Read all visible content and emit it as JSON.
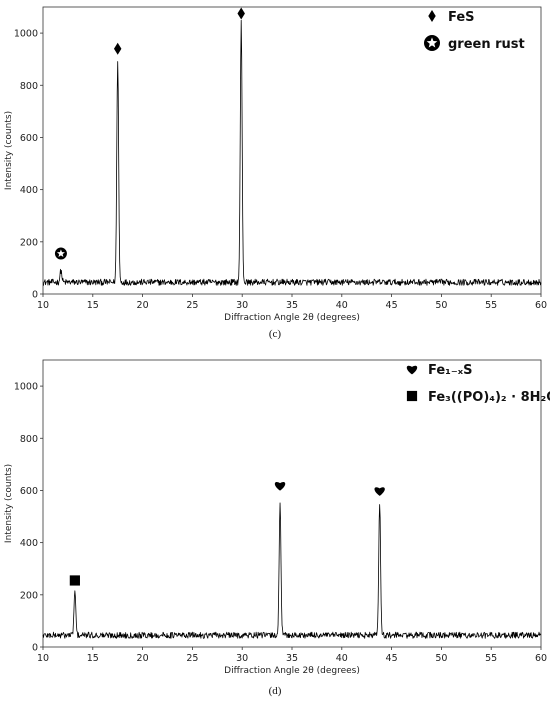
{
  "chart_data": [
    {
      "type": "line",
      "panel_label": "(c)",
      "xlabel": "Diffraction Angle 2θ (degrees)",
      "ylabel": "Intensity (counts)",
      "xlim": [
        10,
        60
      ],
      "ylim": [
        0,
        1100
      ],
      "x_ticks": [
        10,
        15,
        20,
        25,
        30,
        35,
        40,
        45,
        50,
        55,
        60
      ],
      "y_ticks": [
        0,
        200,
        400,
        600,
        800,
        1000
      ],
      "grid": false,
      "baseline": 45,
      "noise_amplitude": 12,
      "series": [
        {
          "peaks": [
            {
              "x": 11.8,
              "y": 90
            },
            {
              "x": 17.5,
              "y": 900
            },
            {
              "x": 29.9,
              "y": 1040
            }
          ]
        }
      ],
      "legend": {
        "position": "top-right",
        "entries": [
          {
            "marker": "diamond",
            "text": "FeS"
          },
          {
            "marker": "star-circle",
            "text": "green rust"
          }
        ]
      },
      "markers": [
        {
          "x": 11.8,
          "y": 155,
          "marker": "star-circle"
        },
        {
          "x": 17.5,
          "y": 940,
          "marker": "diamond"
        },
        {
          "x": 29.9,
          "y": 1075,
          "marker": "diamond"
        }
      ]
    },
    {
      "type": "line",
      "panel_label": "(d)",
      "xlabel": "Diffraction Angle 2θ (degrees)",
      "ylabel": "Intensity (counts)",
      "xlim": [
        10,
        60
      ],
      "ylim": [
        0,
        1100
      ],
      "x_ticks": [
        10,
        15,
        20,
        25,
        30,
        35,
        40,
        45,
        50,
        55,
        60
      ],
      "y_ticks": [
        0,
        200,
        400,
        600,
        800,
        1000
      ],
      "grid": false,
      "baseline": 45,
      "noise_amplitude": 12,
      "series": [
        {
          "peaks": [
            {
              "x": 13.2,
              "y": 210
            },
            {
              "x": 33.8,
              "y": 545
            },
            {
              "x": 43.8,
              "y": 555
            }
          ]
        }
      ],
      "legend": {
        "position": "top-right",
        "entries": [
          {
            "marker": "heart",
            "text": "Fe₁₋ₓS"
          },
          {
            "marker": "square",
            "text": "Fe₃((PO)₄)₂ · 8H₂O"
          }
        ]
      },
      "markers": [
        {
          "x": 13.2,
          "y": 255,
          "marker": "square"
        },
        {
          "x": 33.8,
          "y": 620,
          "marker": "heart"
        },
        {
          "x": 43.8,
          "y": 600,
          "marker": "heart"
        }
      ]
    }
  ]
}
